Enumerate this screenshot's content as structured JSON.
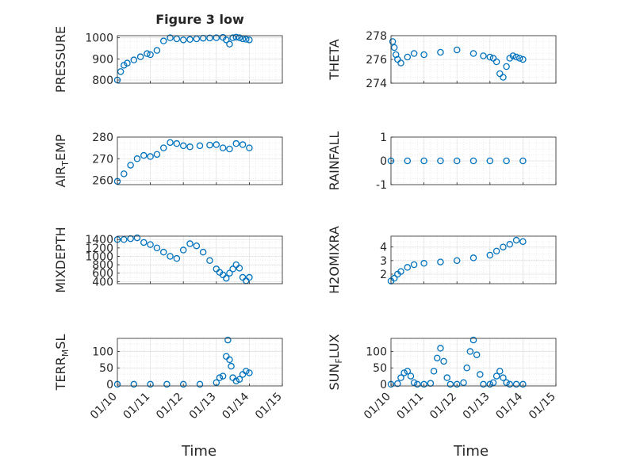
{
  "figure": {
    "title": "Figure 3 low",
    "time_label": "Time",
    "time_tick_labels": [
      "01/10",
      "01/11",
      "01/12",
      "01/13",
      "01/14",
      "01/15"
    ]
  },
  "chart_data": [
    {
      "type": "scatter",
      "ylabel": "PRESSURE",
      "ylim": [
        785,
        1010
      ],
      "yticks": [
        800,
        900,
        1000
      ],
      "xlim": [
        "01/10",
        "01/15"
      ],
      "grid": true,
      "marker": "open-circle",
      "color": "#0072BD",
      "x_days": [
        0.0,
        0.1,
        0.2,
        0.3,
        0.5,
        0.7,
        0.9,
        1.0,
        1.2,
        1.4,
        1.6,
        1.8,
        2.0,
        2.2,
        2.4,
        2.6,
        2.8,
        3.0,
        3.2,
        3.3,
        3.4,
        3.5,
        3.6,
        3.7,
        3.8,
        3.9,
        4.0
      ],
      "y": [
        800,
        840,
        870,
        880,
        895,
        910,
        925,
        920,
        940,
        985,
        1000,
        995,
        990,
        992,
        995,
        998,
        999,
        1000,
        1002,
        990,
        970,
        1000,
        1003,
        1000,
        995,
        993,
        990
      ]
    },
    {
      "type": "scatter",
      "ylabel": "THETA",
      "ylim": [
        274,
        278
      ],
      "yticks": [
        274,
        276,
        278
      ],
      "xlim": [
        "01/10",
        "01/15"
      ],
      "grid": true,
      "marker": "open-circle",
      "color": "#0072BD",
      "x_days": [
        0.05,
        0.1,
        0.15,
        0.2,
        0.3,
        0.5,
        0.7,
        1.0,
        1.5,
        2.0,
        2.5,
        2.8,
        3.0,
        3.1,
        3.2,
        3.3,
        3.4,
        3.5,
        3.6,
        3.7,
        3.8,
        3.9,
        4.0
      ],
      "y": [
        277.5,
        277.0,
        276.4,
        276.0,
        275.7,
        276.2,
        276.5,
        276.4,
        276.6,
        276.8,
        276.5,
        276.3,
        276.2,
        276.1,
        275.8,
        274.8,
        274.5,
        275.4,
        276.1,
        276.3,
        276.2,
        276.1,
        276.0
      ]
    },
    {
      "type": "scatter",
      "ylabel": "AIR_TEMP",
      "ylim": [
        258,
        280
      ],
      "yticks": [
        260,
        270,
        280
      ],
      "xlim": [
        "01/10",
        "01/15"
      ],
      "grid": true,
      "marker": "open-circle",
      "color": "#0072BD",
      "x_days": [
        0.0,
        0.2,
        0.4,
        0.6,
        0.8,
        1.0,
        1.2,
        1.4,
        1.6,
        1.8,
        2.0,
        2.2,
        2.5,
        2.8,
        3.0,
        3.2,
        3.4,
        3.6,
        3.8,
        4.0
      ],
      "y": [
        259.5,
        263,
        267,
        270,
        271.5,
        271,
        272,
        275,
        277.5,
        277,
        276,
        275.5,
        276,
        276.3,
        276.5,
        275,
        274.5,
        277,
        276.5,
        275
      ]
    },
    {
      "type": "scatter",
      "ylabel": "RAINFALL",
      "ylim": [
        -1,
        1
      ],
      "yticks": [
        -1,
        0,
        1
      ],
      "xlim": [
        "01/10",
        "01/15"
      ],
      "grid": true,
      "marker": "open-circle",
      "color": "#0072BD",
      "x_days": [
        0.0,
        0.5,
        1.0,
        1.5,
        2.0,
        2.5,
        3.0,
        3.5,
        4.0
      ],
      "y": [
        0,
        0,
        0,
        0,
        0,
        0,
        0,
        0,
        0
      ]
    },
    {
      "type": "scatter",
      "ylabel": "MIXDEPTH",
      "ylim": [
        350,
        1480
      ],
      "yticks": [
        400,
        600,
        800,
        1000,
        1200,
        1400
      ],
      "xlim": [
        "01/10",
        "01/15"
      ],
      "grid": true,
      "marker": "open-circle",
      "color": "#0072BD",
      "x_days": [
        0.0,
        0.2,
        0.4,
        0.6,
        0.8,
        1.0,
        1.2,
        1.4,
        1.6,
        1.8,
        2.0,
        2.2,
        2.4,
        2.6,
        2.8,
        3.0,
        3.1,
        3.2,
        3.3,
        3.4,
        3.5,
        3.6,
        3.7,
        3.8,
        3.9,
        4.0
      ],
      "y": [
        1400,
        1400,
        1420,
        1440,
        1330,
        1280,
        1200,
        1100,
        1000,
        950,
        1150,
        1300,
        1250,
        1100,
        900,
        700,
        620,
        560,
        480,
        600,
        700,
        800,
        720,
        500,
        420,
        500
      ]
    },
    {
      "type": "scatter",
      "ylabel": "H2OMIXRA",
      "ylim": [
        1.3,
        4.8
      ],
      "yticks": [
        2,
        3,
        4
      ],
      "xlim": [
        "01/10",
        "01/15"
      ],
      "grid": true,
      "marker": "open-circle",
      "color": "#0072BD",
      "x_days": [
        0.0,
        0.1,
        0.2,
        0.3,
        0.5,
        0.7,
        1.0,
        1.5,
        2.0,
        2.5,
        3.0,
        3.2,
        3.4,
        3.6,
        3.8,
        4.0
      ],
      "y": [
        1.5,
        1.7,
        2.0,
        2.2,
        2.5,
        2.7,
        2.8,
        2.9,
        3.0,
        3.2,
        3.4,
        3.7,
        4.0,
        4.2,
        4.5,
        4.4
      ]
    },
    {
      "type": "scatter",
      "ylabel": "TERR_MSL",
      "ylim": [
        -5,
        140
      ],
      "yticks": [
        0,
        50,
        100
      ],
      "xlim": [
        "01/10",
        "01/15"
      ],
      "grid": true,
      "marker": "open-circle",
      "color": "#0072BD",
      "x_days": [
        0.0,
        0.5,
        1.0,
        1.5,
        2.0,
        2.5,
        3.0,
        3.1,
        3.2,
        3.3,
        3.35,
        3.4,
        3.45,
        3.5,
        3.6,
        3.7,
        3.8,
        3.9,
        4.0
      ],
      "y": [
        0,
        0,
        0,
        0,
        0,
        0,
        5,
        20,
        25,
        85,
        135,
        75,
        55,
        20,
        10,
        15,
        30,
        40,
        35
      ]
    },
    {
      "type": "scatter",
      "ylabel": "SUN_FLUX",
      "ylim": [
        -5,
        140
      ],
      "yticks": [
        0,
        50,
        100
      ],
      "xlim": [
        "01/10",
        "01/15"
      ],
      "grid": true,
      "marker": "open-circle",
      "color": "#0072BD",
      "x_days": [
        0.0,
        0.2,
        0.3,
        0.4,
        0.5,
        0.6,
        0.7,
        0.8,
        1.0,
        1.2,
        1.3,
        1.4,
        1.5,
        1.6,
        1.7,
        1.8,
        2.0,
        2.2,
        2.3,
        2.4,
        2.5,
        2.6,
        2.7,
        2.8,
        3.0,
        3.1,
        3.2,
        3.3,
        3.4,
        3.5,
        3.6,
        3.8,
        4.0
      ],
      "y": [
        0,
        2,
        20,
        35,
        40,
        25,
        5,
        0,
        0,
        3,
        40,
        80,
        110,
        70,
        20,
        0,
        0,
        5,
        50,
        100,
        135,
        90,
        30,
        0,
        0,
        5,
        25,
        40,
        20,
        5,
        0,
        0,
        0
      ]
    }
  ]
}
